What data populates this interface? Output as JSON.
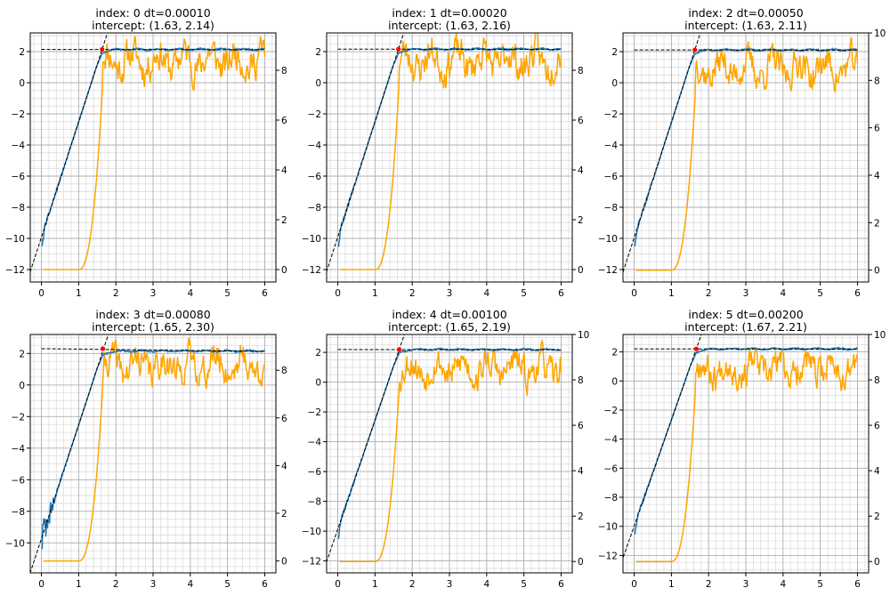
{
  "chart_data": [
    {
      "type": "line",
      "title_line1": "index: 0 dt=0.00010",
      "title_line2": "intercept: (1.63, 2.14)",
      "xlim": [
        -0.3,
        6.3
      ],
      "ylim": [
        -12.8,
        3.2
      ],
      "ylim_right": [
        -0.5,
        9.5
      ],
      "xticks": [
        "0",
        "1",
        "2",
        "3",
        "4",
        "5",
        "6"
      ],
      "yticks_left": [
        "2",
        "0",
        "−2",
        "−4",
        "−6",
        "−8",
        "−10",
        "−12"
      ],
      "yticks_right": [
        "0",
        "2",
        "4",
        "6",
        "8"
      ],
      "intercept": [
        1.63,
        2.14
      ],
      "plateau": 2.14,
      "slope": 7.4,
      "left_noise": "normal",
      "orange_level": 8.4,
      "seed": 11
    },
    {
      "type": "line",
      "title_line1": "index: 1 dt=0.00020",
      "title_line2": "intercept: (1.63, 2.16)",
      "xlim": [
        -0.3,
        6.3
      ],
      "ylim": [
        -12.8,
        3.2
      ],
      "ylim_right": [
        -0.5,
        9.5
      ],
      "xticks": [
        "0",
        "1",
        "2",
        "3",
        "4",
        "5",
        "6"
      ],
      "yticks_left": [
        "2",
        "0",
        "−2",
        "−4",
        "−6",
        "−8",
        "−10",
        "−12"
      ],
      "yticks_right": [
        "0",
        "2",
        "4",
        "6",
        "8"
      ],
      "intercept": [
        1.63,
        2.16
      ],
      "plateau": 2.16,
      "slope": 7.4,
      "left_noise": "normal",
      "orange_level": 8.4,
      "seed": 23
    },
    {
      "type": "line",
      "title_line1": "index: 2 dt=0.00050",
      "title_line2": "intercept: (1.63, 2.11)",
      "xlim": [
        -0.3,
        6.3
      ],
      "ylim": [
        -12.8,
        3.2
      ],
      "ylim_right": [
        -0.5,
        10.0
      ],
      "xticks": [
        "0",
        "1",
        "2",
        "3",
        "4",
        "5",
        "6"
      ],
      "yticks_left": [
        "2",
        "0",
        "−2",
        "−4",
        "−6",
        "−8",
        "−10",
        "−12"
      ],
      "yticks_right": [
        "0",
        "2",
        "4",
        "6",
        "8",
        "10"
      ],
      "intercept": [
        1.63,
        2.11
      ],
      "plateau": 2.11,
      "slope": 7.4,
      "left_noise": "normal",
      "orange_level": 8.5,
      "seed": 37
    },
    {
      "type": "line",
      "title_line1": "index: 3 dt=0.00080",
      "title_line2": "intercept: (1.65, 2.30)",
      "xlim": [
        -0.3,
        6.3
      ],
      "ylim": [
        -11.9,
        3.2
      ],
      "ylim_right": [
        -0.5,
        9.5
      ],
      "xticks": [
        "0",
        "1",
        "2",
        "3",
        "4",
        "5",
        "6"
      ],
      "yticks_left": [
        "2",
        "0",
        "−2",
        "−4",
        "−6",
        "−8",
        "−10"
      ],
      "yticks_right": [
        "0",
        "2",
        "4",
        "6",
        "8"
      ],
      "intercept": [
        1.65,
        2.3
      ],
      "plateau": 2.15,
      "slope": 7.2,
      "left_noise": "burst",
      "orange_level": 8.2,
      "seed": 41
    },
    {
      "type": "line",
      "title_line1": "index: 4 dt=0.00100",
      "title_line2": "intercept: (1.65, 2.19)",
      "xlim": [
        -0.3,
        6.3
      ],
      "ylim": [
        -12.8,
        3.2
      ],
      "ylim_right": [
        -0.5,
        10.0
      ],
      "xticks": [
        "0",
        "1",
        "2",
        "3",
        "4",
        "5",
        "6"
      ],
      "yticks_left": [
        "2",
        "0",
        "−2",
        "−4",
        "−6",
        "−8",
        "−10",
        "−12"
      ],
      "yticks_right": [
        "0",
        "2",
        "4",
        "6",
        "8",
        "10"
      ],
      "intercept": [
        1.65,
        2.19
      ],
      "plateau": 2.19,
      "slope": 7.3,
      "left_noise": "normal",
      "orange_level": 8.5,
      "seed": 53
    },
    {
      "type": "line",
      "title_line1": "index: 5 dt=0.00200",
      "title_line2": "intercept: (1.67, 2.21)",
      "xlim": [
        -0.3,
        6.3
      ],
      "ylim": [
        -13.2,
        3.2
      ],
      "ylim_right": [
        -0.5,
        10.0
      ],
      "xticks": [
        "0",
        "1",
        "2",
        "3",
        "4",
        "5",
        "6"
      ],
      "yticks_left": [
        "2",
        "0",
        "−2",
        "−4",
        "−6",
        "−8",
        "−10",
        "−12"
      ],
      "yticks_right": [
        "0",
        "2",
        "4",
        "6",
        "8",
        "10"
      ],
      "intercept": [
        1.67,
        2.21
      ],
      "plateau": 2.21,
      "slope": 7.3,
      "left_noise": "normal",
      "orange_level": 8.5,
      "seed": 67
    }
  ],
  "colors": {
    "blue": "#1f77b4",
    "orange": "#ffa500",
    "fit": "#000000",
    "intercept": "#ff0000",
    "grid": "#b0b0b0",
    "minor_grid": "#d9d9d9"
  }
}
